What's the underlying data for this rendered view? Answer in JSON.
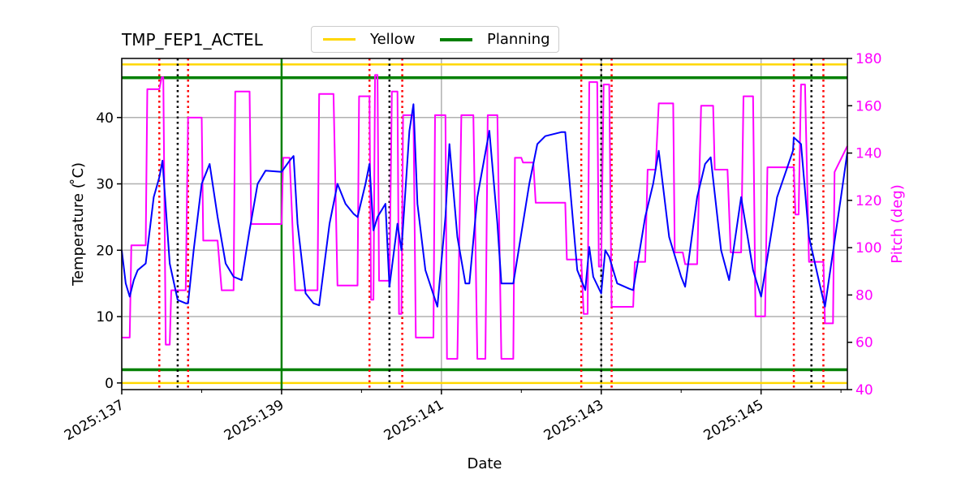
{
  "chart_data": {
    "type": "line",
    "title": "TMP_FEP1_ACTEL",
    "xlabel": "Date",
    "ylabel": "Temperature ($^\\circ$C)",
    "ylabel_display": "Temperature ( ̊C)",
    "y2label": "Pitch (deg)",
    "xlim": [
      137.0,
      146.08
    ],
    "ylim": [
      -1.0,
      48.9
    ],
    "y2lim": [
      40,
      180
    ],
    "x_ticks": [
      137,
      139,
      141,
      143,
      145
    ],
    "x_tick_labels": [
      "2025:137",
      "2025:139",
      "2025:141",
      "2025:143",
      "2025:145"
    ],
    "x_minor_ticks": [
      138,
      140,
      142,
      144,
      146
    ],
    "y_ticks": [
      0,
      10,
      20,
      30,
      40
    ],
    "y2_ticks": [
      40,
      60,
      80,
      100,
      120,
      140,
      160,
      180
    ],
    "grid": true,
    "legend": {
      "position": "upper center (above axes)",
      "entries": [
        "Yellow",
        "Planning"
      ]
    },
    "limit_lines": [
      {
        "name": "Yellow",
        "values": [
          48.0,
          0.0
        ],
        "color": "#ffd700"
      },
      {
        "name": "Planning",
        "values": [
          46.0,
          2.0
        ],
        "color": "#008000"
      }
    ],
    "vertical_lines": {
      "planning_green": [
        139.0
      ],
      "red_dotted": [
        137.47,
        137.83,
        140.1,
        140.51,
        142.75,
        143.13,
        145.41,
        145.78
      ],
      "black_dotted": [
        137.7,
        140.35,
        143.0,
        145.63
      ]
    },
    "series": [
      {
        "name": "TMP_FEP1_ACTEL",
        "axis": "left",
        "color": "#0000ff",
        "x": [
          137.0,
          137.05,
          137.1,
          137.15,
          137.2,
          137.3,
          137.4,
          137.47,
          137.51,
          137.6,
          137.7,
          137.8,
          137.83,
          137.9,
          138.0,
          138.1,
          138.2,
          138.3,
          138.4,
          138.5,
          138.6,
          138.7,
          138.8,
          139.0,
          139.1,
          139.15,
          139.2,
          139.3,
          139.4,
          139.47,
          139.6,
          139.7,
          139.8,
          139.9,
          139.95,
          140.05,
          140.1,
          140.15,
          140.2,
          140.3,
          140.35,
          140.45,
          140.5,
          140.6,
          140.65,
          140.7,
          140.8,
          140.95,
          141.05,
          141.1,
          141.2,
          141.3,
          141.35,
          141.45,
          141.6,
          141.7,
          141.75,
          141.9,
          142.1,
          142.2,
          142.3,
          142.5,
          142.55,
          142.7,
          142.8,
          142.85,
          142.9,
          143.0,
          143.05,
          143.1,
          143.2,
          143.35,
          143.4,
          143.55,
          143.65,
          143.72,
          143.85,
          144.0,
          144.05,
          144.2,
          144.3,
          144.37,
          144.5,
          144.6,
          144.75,
          144.9,
          145.0,
          145.2,
          145.4,
          145.41,
          145.5,
          145.6,
          145.75,
          145.8,
          146.0,
          146.08
        ],
        "values": [
          20,
          15,
          13,
          15.5,
          17,
          18,
          28,
          31,
          33.5,
          18,
          12.5,
          12,
          12,
          20,
          30,
          33,
          25,
          18,
          16,
          15.5,
          23,
          30,
          32,
          31.8,
          33.5,
          34.2,
          24,
          13.5,
          12,
          11.7,
          24,
          30,
          27,
          25.5,
          25,
          30,
          33,
          23,
          25,
          27,
          14.5,
          24,
          20,
          38,
          42,
          27,
          17,
          11.5,
          25,
          36,
          22,
          15,
          15,
          28,
          38,
          24,
          15,
          15,
          30,
          36,
          37.2,
          37.8,
          37.8,
          17,
          14,
          20.5,
          16,
          13.5,
          20,
          19,
          15,
          14.2,
          14,
          25,
          30,
          35,
          22,
          16,
          14.5,
          28,
          33,
          34,
          20,
          15.5,
          28,
          17,
          13,
          28,
          35,
          37,
          36,
          22,
          14,
          11.5,
          28,
          34.8
        ]
      },
      {
        "name": "Pitch",
        "axis": "right",
        "color": "#ff00ff",
        "x": [
          137.0,
          137.1,
          137.12,
          137.3,
          137.32,
          137.47,
          137.5,
          137.52,
          137.55,
          137.6,
          137.62,
          137.8,
          137.83,
          138.0,
          138.02,
          138.2,
          138.25,
          138.4,
          138.42,
          138.6,
          138.62,
          139.0,
          139.02,
          139.1,
          139.17,
          139.45,
          139.47,
          139.65,
          139.7,
          139.95,
          139.97,
          140.1,
          140.12,
          140.15,
          140.17,
          140.2,
          140.22,
          140.35,
          140.38,
          140.45,
          140.47,
          140.5,
          140.52,
          140.65,
          140.68,
          140.9,
          140.92,
          141.05,
          141.07,
          141.2,
          141.25,
          141.4,
          141.45,
          141.55,
          141.58,
          141.7,
          141.75,
          141.9,
          141.92,
          142.0,
          142.02,
          142.15,
          142.18,
          142.55,
          142.57,
          142.75,
          142.78,
          142.83,
          142.85,
          142.95,
          142.97,
          143.0,
          143.03,
          143.1,
          143.13,
          143.4,
          143.42,
          143.55,
          143.58,
          143.68,
          143.72,
          143.9,
          143.92,
          144.02,
          144.05,
          144.2,
          144.25,
          144.4,
          144.42,
          144.58,
          144.62,
          144.75,
          144.78,
          144.9,
          144.93,
          145.05,
          145.08,
          145.41,
          145.43,
          145.47,
          145.5,
          145.55,
          145.6,
          145.78,
          145.8,
          145.9,
          145.92,
          146.08
        ],
        "values": [
          62,
          62,
          101,
          101,
          167,
          167,
          172,
          172,
          59,
          59,
          82,
          82,
          155,
          155,
          103,
          103,
          82,
          82,
          166,
          166,
          110,
          110,
          138,
          138,
          82,
          82,
          165,
          165,
          84,
          84,
          164,
          164,
          78,
          78,
          173,
          173,
          86,
          86,
          166,
          166,
          72,
          72,
          156,
          156,
          62,
          62,
          156,
          156,
          53,
          53,
          156,
          156,
          53,
          53,
          156,
          156,
          53,
          53,
          138,
          138,
          136,
          136,
          119,
          119,
          95,
          95,
          72,
          72,
          170,
          170,
          92,
          92,
          169,
          169,
          75,
          75,
          94,
          94,
          133,
          133,
          161,
          161,
          98,
          98,
          93,
          93,
          160,
          160,
          133,
          133,
          98,
          98,
          164,
          164,
          71,
          71,
          134,
          134,
          114,
          114,
          169,
          169,
          94,
          94,
          68,
          68,
          132,
          143
        ]
      }
    ]
  },
  "legend": {
    "items": [
      {
        "label": "Yellow",
        "color": "#ffd700"
      },
      {
        "label": "Planning",
        "color": "#008000"
      }
    ]
  },
  "title": "TMP_FEP1_ACTEL",
  "axes": {
    "xlabel": "Date",
    "ylabel": "Temperature ( ̊C)",
    "y2label": "Pitch (deg)"
  },
  "colors": {
    "temperature": "#0000ff",
    "pitch": "#ff00ff",
    "yellow_limit": "#ffd700",
    "planning_limit": "#008000",
    "red_marker": "#ff0000",
    "black_marker": "#000000",
    "grid": "#b0b0b0"
  }
}
